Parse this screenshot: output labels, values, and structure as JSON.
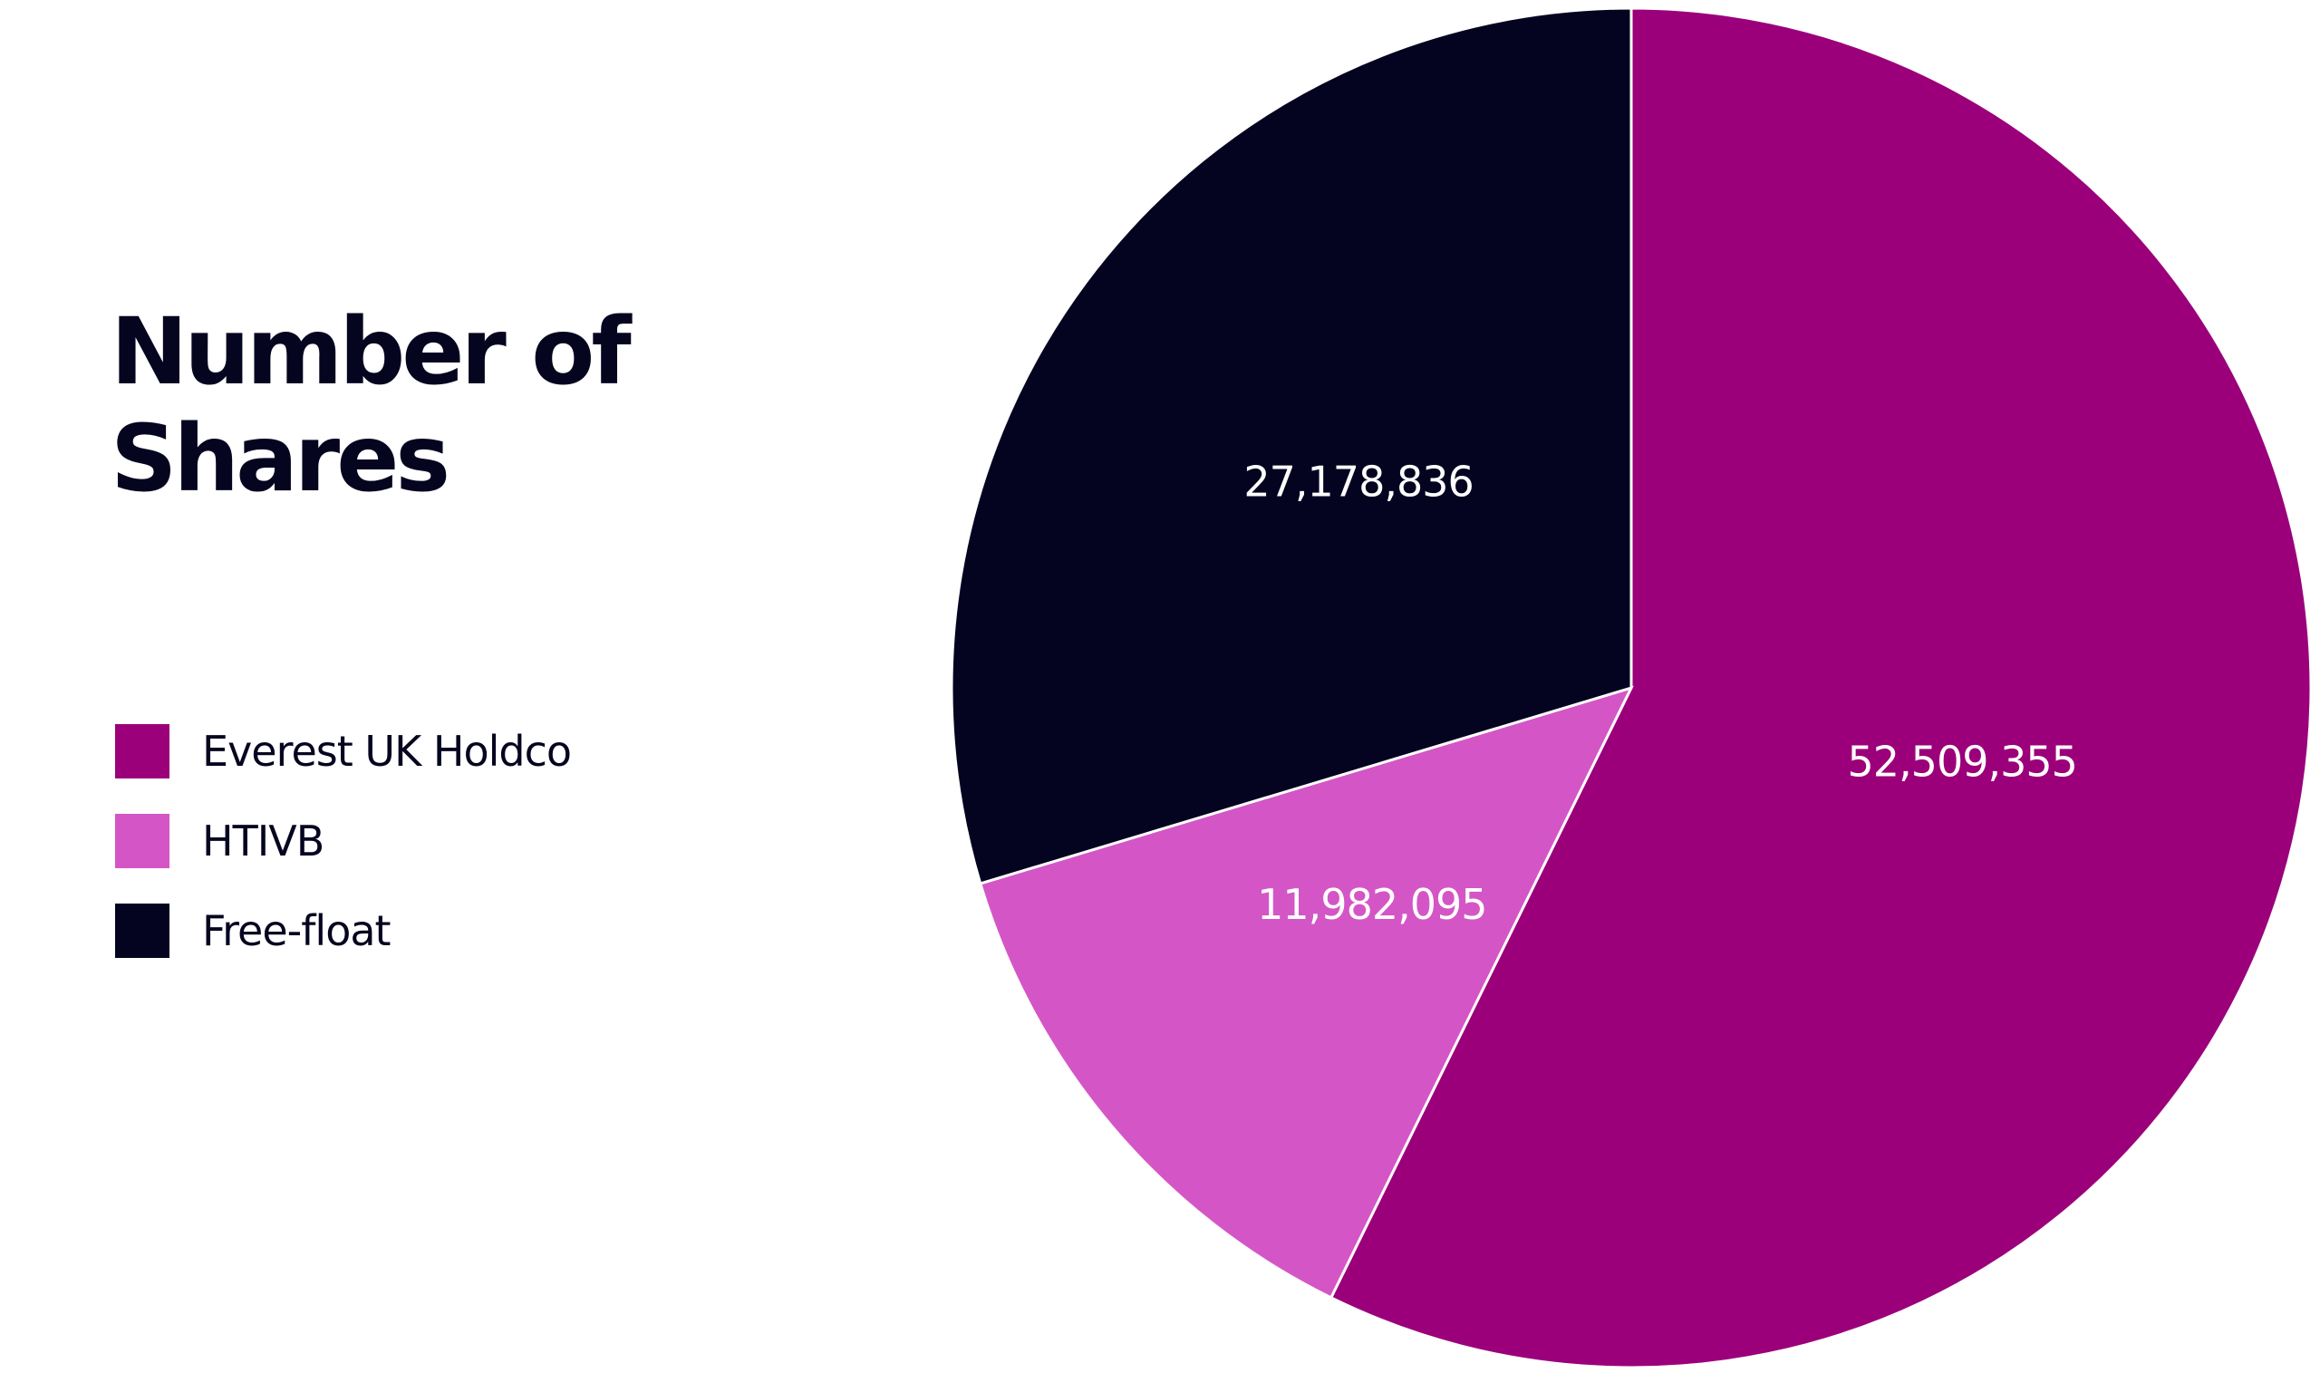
{
  "chart_data": {
    "type": "pie",
    "title": "Number of Shares",
    "slices": [
      {
        "name": "Everest UK Holdco",
        "value": 52509355,
        "label": "52,509,355",
        "color": "#9B007A"
      },
      {
        "name": "HTIVB",
        "value": 11982095,
        "label": "11,982,095",
        "color": "#D456C6"
      },
      {
        "name": "Free-float",
        "value": 27178836,
        "label": "27,178,836",
        "color": "#040421"
      }
    ],
    "start": "12 o'clock",
    "direction": "clockwise",
    "legend_position": "left"
  }
}
